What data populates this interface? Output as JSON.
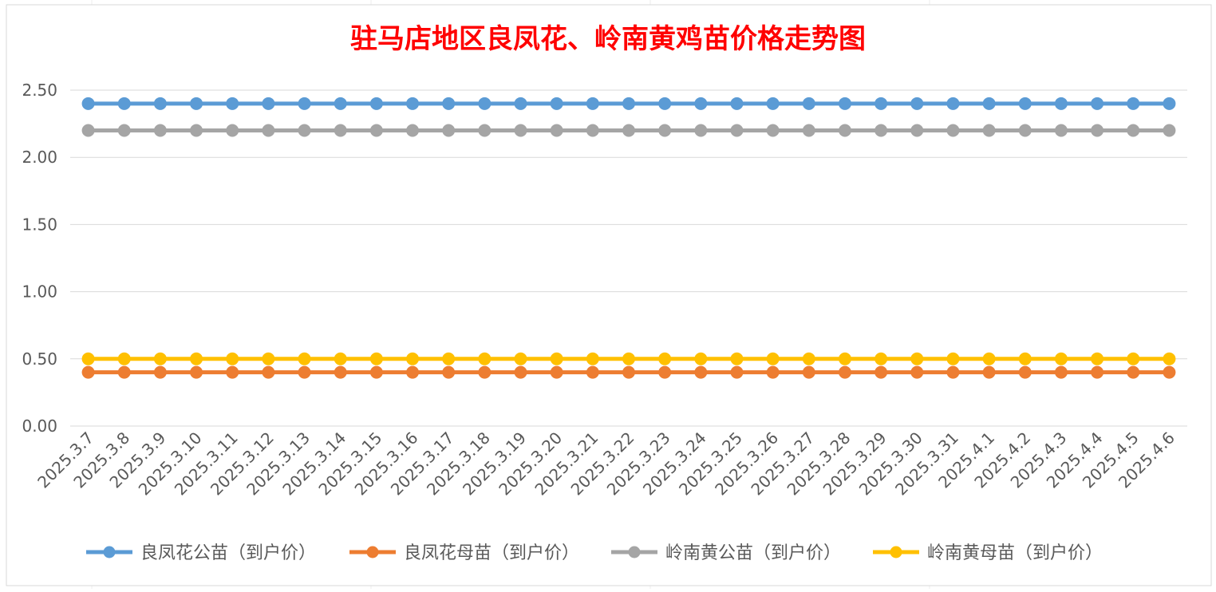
{
  "chart_data": {
    "type": "line",
    "title": "驻马店地区良凤花、岭南黄鸡苗价格走势图",
    "title_color": "#ff0000",
    "xlabel": "",
    "ylabel": "",
    "ylim": [
      0,
      2.5
    ],
    "yticks": [
      "0.00",
      "0.50",
      "1.00",
      "1.50",
      "2.00",
      "2.50"
    ],
    "grid": true,
    "legend_position": "bottom",
    "categories": [
      "2025.3.7",
      "2025.3.8",
      "2025.3.9",
      "2025.3.10",
      "2025.3.11",
      "2025.3.12",
      "2025.3.13",
      "2025.3.14",
      "2025.3.15",
      "2025.3.16",
      "2025.3.17",
      "2025.3.18",
      "2025.3.19",
      "2025.3.20",
      "2025.3.21",
      "2025.3.22",
      "2025.3.23",
      "2025.3.24",
      "2025.3.25",
      "2025.3.26",
      "2025.3.27",
      "2025.3.28",
      "2025.3.29",
      "2025.3.30",
      "2025.3.31",
      "2025.4.1",
      "2025.4.2",
      "2025.4.3",
      "2025.4.4",
      "2025.4.5",
      "2025.4.6"
    ],
    "series": [
      {
        "name": "良凤花公苗（到户价）",
        "color": "#5b9bd5",
        "values": [
          2.4,
          2.4,
          2.4,
          2.4,
          2.4,
          2.4,
          2.4,
          2.4,
          2.4,
          2.4,
          2.4,
          2.4,
          2.4,
          2.4,
          2.4,
          2.4,
          2.4,
          2.4,
          2.4,
          2.4,
          2.4,
          2.4,
          2.4,
          2.4,
          2.4,
          2.4,
          2.4,
          2.4,
          2.4,
          2.4,
          2.4
        ]
      },
      {
        "name": "良凤花母苗（到户价）",
        "color": "#ed7d31",
        "values": [
          0.4,
          0.4,
          0.4,
          0.4,
          0.4,
          0.4,
          0.4,
          0.4,
          0.4,
          0.4,
          0.4,
          0.4,
          0.4,
          0.4,
          0.4,
          0.4,
          0.4,
          0.4,
          0.4,
          0.4,
          0.4,
          0.4,
          0.4,
          0.4,
          0.4,
          0.4,
          0.4,
          0.4,
          0.4,
          0.4,
          0.4
        ]
      },
      {
        "name": "岭南黄公苗（到户价）",
        "color": "#a5a5a5",
        "values": [
          2.2,
          2.2,
          2.2,
          2.2,
          2.2,
          2.2,
          2.2,
          2.2,
          2.2,
          2.2,
          2.2,
          2.2,
          2.2,
          2.2,
          2.2,
          2.2,
          2.2,
          2.2,
          2.2,
          2.2,
          2.2,
          2.2,
          2.2,
          2.2,
          2.2,
          2.2,
          2.2,
          2.2,
          2.2,
          2.2,
          2.2
        ]
      },
      {
        "name": "岭南黄母苗（到户价）",
        "color": "#ffc000",
        "values": [
          0.5,
          0.5,
          0.5,
          0.5,
          0.5,
          0.5,
          0.5,
          0.5,
          0.5,
          0.5,
          0.5,
          0.5,
          0.5,
          0.5,
          0.5,
          0.5,
          0.5,
          0.5,
          0.5,
          0.5,
          0.5,
          0.5,
          0.5,
          0.5,
          0.5,
          0.5,
          0.5,
          0.5,
          0.5,
          0.5,
          0.5
        ]
      }
    ]
  }
}
